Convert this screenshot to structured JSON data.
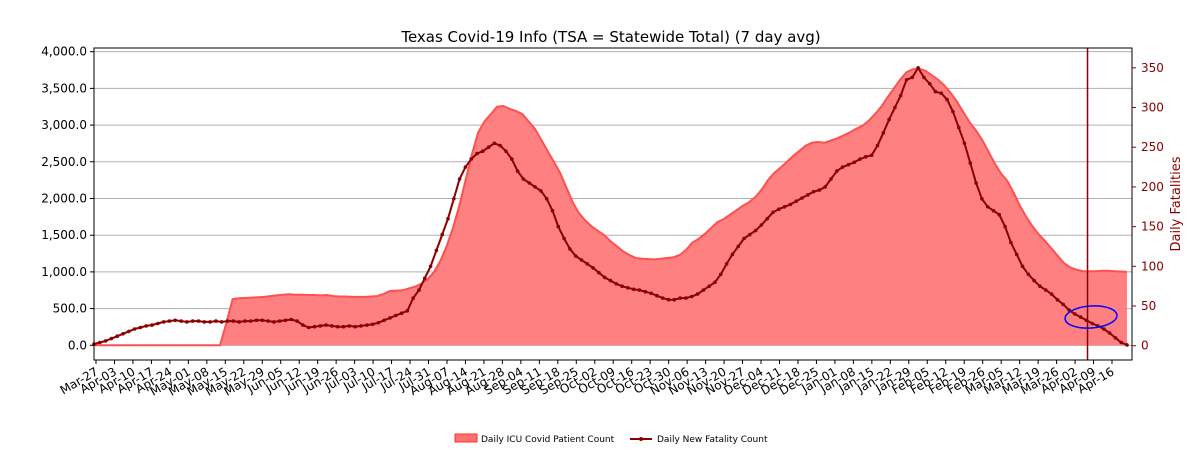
{
  "chart_data": {
    "type": "area",
    "title": "Texas Covid-19 Info (TSA = Statewide Total) (7 day avg)",
    "xlabel": "",
    "ylabel": "",
    "y2label": "Daily Fatalities",
    "ylim": [
      -200,
      4050
    ],
    "y2lim": [
      -18,
      375
    ],
    "yticks": [
      "0.0",
      "500.0",
      "1,000.0",
      "1,500.0",
      "2,000.0",
      "2,500.0",
      "3,000.0",
      "3,500.0",
      "4,000.0"
    ],
    "ytick_values": [
      0,
      500,
      1000,
      1500,
      2000,
      2500,
      3000,
      3500,
      4000
    ],
    "y2ticks": [
      "0",
      "50",
      "100",
      "150",
      "200",
      "250",
      "300",
      "350"
    ],
    "y2tick_values": [
      0,
      50,
      100,
      150,
      200,
      250,
      300,
      350
    ],
    "grid": true,
    "legend_position": "bottom-center",
    "x_tick_labels": [
      "Mar-27",
      "Apr-03",
      "Apr-10",
      "Apr-17",
      "Apr-24",
      "May-01",
      "May-08",
      "May-15",
      "May-22",
      "May-29",
      "Jun-05",
      "Jun-12",
      "Jun-19",
      "Jun-26",
      "Jul-03",
      "Jul-10",
      "Jul-17",
      "Jul-24",
      "Jul-31",
      "Aug-07",
      "Aug-14",
      "Aug-21",
      "Aug-28",
      "Sep-04",
      "Sep-11",
      "Sep-18",
      "Sep-25",
      "Oct-02",
      "Oct-09",
      "Oct-16",
      "Oct-23",
      "Oct-30",
      "Nov-06",
      "Nov-13",
      "Nov-20",
      "Nov-27",
      "Dec-04",
      "Dec-11",
      "Dec-18",
      "Dec-25",
      "Jan-01",
      "Jan-08",
      "Jan-15",
      "Jan-22",
      "Jan-29",
      "Feb-05",
      "Feb-12",
      "Feb-19",
      "Feb-26",
      "Mar-05",
      "Mar-12",
      "Mar-19",
      "Mar-26",
      "Apr-02",
      "Apr-09",
      "Apr-16"
    ],
    "marker_line_label": "Apr-09",
    "series": [
      {
        "name": "Daily ICU Covid Patient Count",
        "axis": "left",
        "color": "#ff6060",
        "values": [
          0,
          0,
          0,
          0,
          0,
          0,
          0,
          0,
          0,
          0,
          0,
          0,
          0,
          0,
          0,
          0,
          0,
          0,
          0,
          0,
          0,
          300,
          630,
          640,
          645,
          650,
          655,
          660,
          670,
          680,
          690,
          695,
          690,
          690,
          685,
          685,
          680,
          685,
          670,
          665,
          665,
          660,
          660,
          660,
          665,
          670,
          700,
          740,
          745,
          750,
          775,
          800,
          840,
          900,
          1000,
          1150,
          1350,
          1600,
          1900,
          2250,
          2600,
          2900,
          3050,
          3150,
          3250,
          3260,
          3220,
          3190,
          3150,
          3050,
          2950,
          2800,
          2650,
          2500,
          2350,
          2150,
          1950,
          1800,
          1700,
          1620,
          1560,
          1500,
          1420,
          1350,
          1280,
          1230,
          1190,
          1180,
          1175,
          1170,
          1180,
          1190,
          1200,
          1230,
          1300,
          1400,
          1450,
          1520,
          1600,
          1680,
          1720,
          1780,
          1840,
          1900,
          1950,
          2020,
          2120,
          2250,
          2350,
          2420,
          2500,
          2580,
          2650,
          2720,
          2760,
          2770,
          2760,
          2790,
          2820,
          2860,
          2900,
          2950,
          2990,
          3060,
          3150,
          3250,
          3380,
          3500,
          3620,
          3720,
          3760,
          3770,
          3740,
          3680,
          3620,
          3540,
          3440,
          3320,
          3180,
          3040,
          2930,
          2800,
          2640,
          2480,
          2340,
          2240,
          2080,
          1900,
          1750,
          1620,
          1510,
          1420,
          1320,
          1220,
          1120,
          1060,
          1030,
          1010,
          1010,
          1010,
          1015,
          1015,
          1010,
          1005,
          1000
        ]
      },
      {
        "name": "Daily New Fatality Count",
        "axis": "right",
        "color": "#8b0000",
        "values": [
          2,
          4,
          6,
          9,
          12,
          15,
          18,
          21,
          23,
          25,
          26,
          28,
          30,
          31,
          32,
          31,
          30,
          31,
          31,
          30,
          30,
          31,
          30,
          31,
          31,
          30,
          31,
          31,
          32,
          32,
          31,
          30,
          31,
          32,
          33,
          31,
          26,
          23,
          24,
          25,
          26,
          25,
          24,
          24,
          25,
          24,
          25,
          26,
          27,
          29,
          32,
          35,
          38,
          41,
          44,
          60,
          70,
          85,
          100,
          120,
          140,
          160,
          185,
          210,
          225,
          235,
          242,
          245,
          250,
          255,
          252,
          245,
          235,
          220,
          210,
          205,
          200,
          195,
          185,
          170,
          150,
          135,
          122,
          113,
          108,
          103,
          98,
          92,
          86,
          82,
          78,
          75,
          73,
          71,
          70,
          68,
          66,
          63,
          60,
          58,
          58,
          60,
          60,
          62,
          65,
          70,
          75,
          80,
          90,
          103,
          115,
          125,
          135,
          140,
          145,
          152,
          160,
          168,
          172,
          175,
          178,
          182,
          186,
          190,
          194,
          196,
          200,
          210,
          220,
          225,
          228,
          231,
          235,
          238,
          240,
          252,
          268,
          285,
          300,
          315,
          335,
          338,
          350,
          338,
          330,
          320,
          318,
          310,
          295,
          275,
          255,
          230,
          205,
          185,
          175,
          170,
          165,
          150,
          130,
          115,
          100,
          90,
          82,
          75,
          70,
          65,
          58,
          52,
          45,
          40,
          36,
          32,
          28,
          25,
          21,
          16,
          10,
          4,
          1
        ]
      }
    ],
    "annotation": {
      "shape": "ellipse",
      "color": "#0000ff",
      "label": ""
    }
  }
}
